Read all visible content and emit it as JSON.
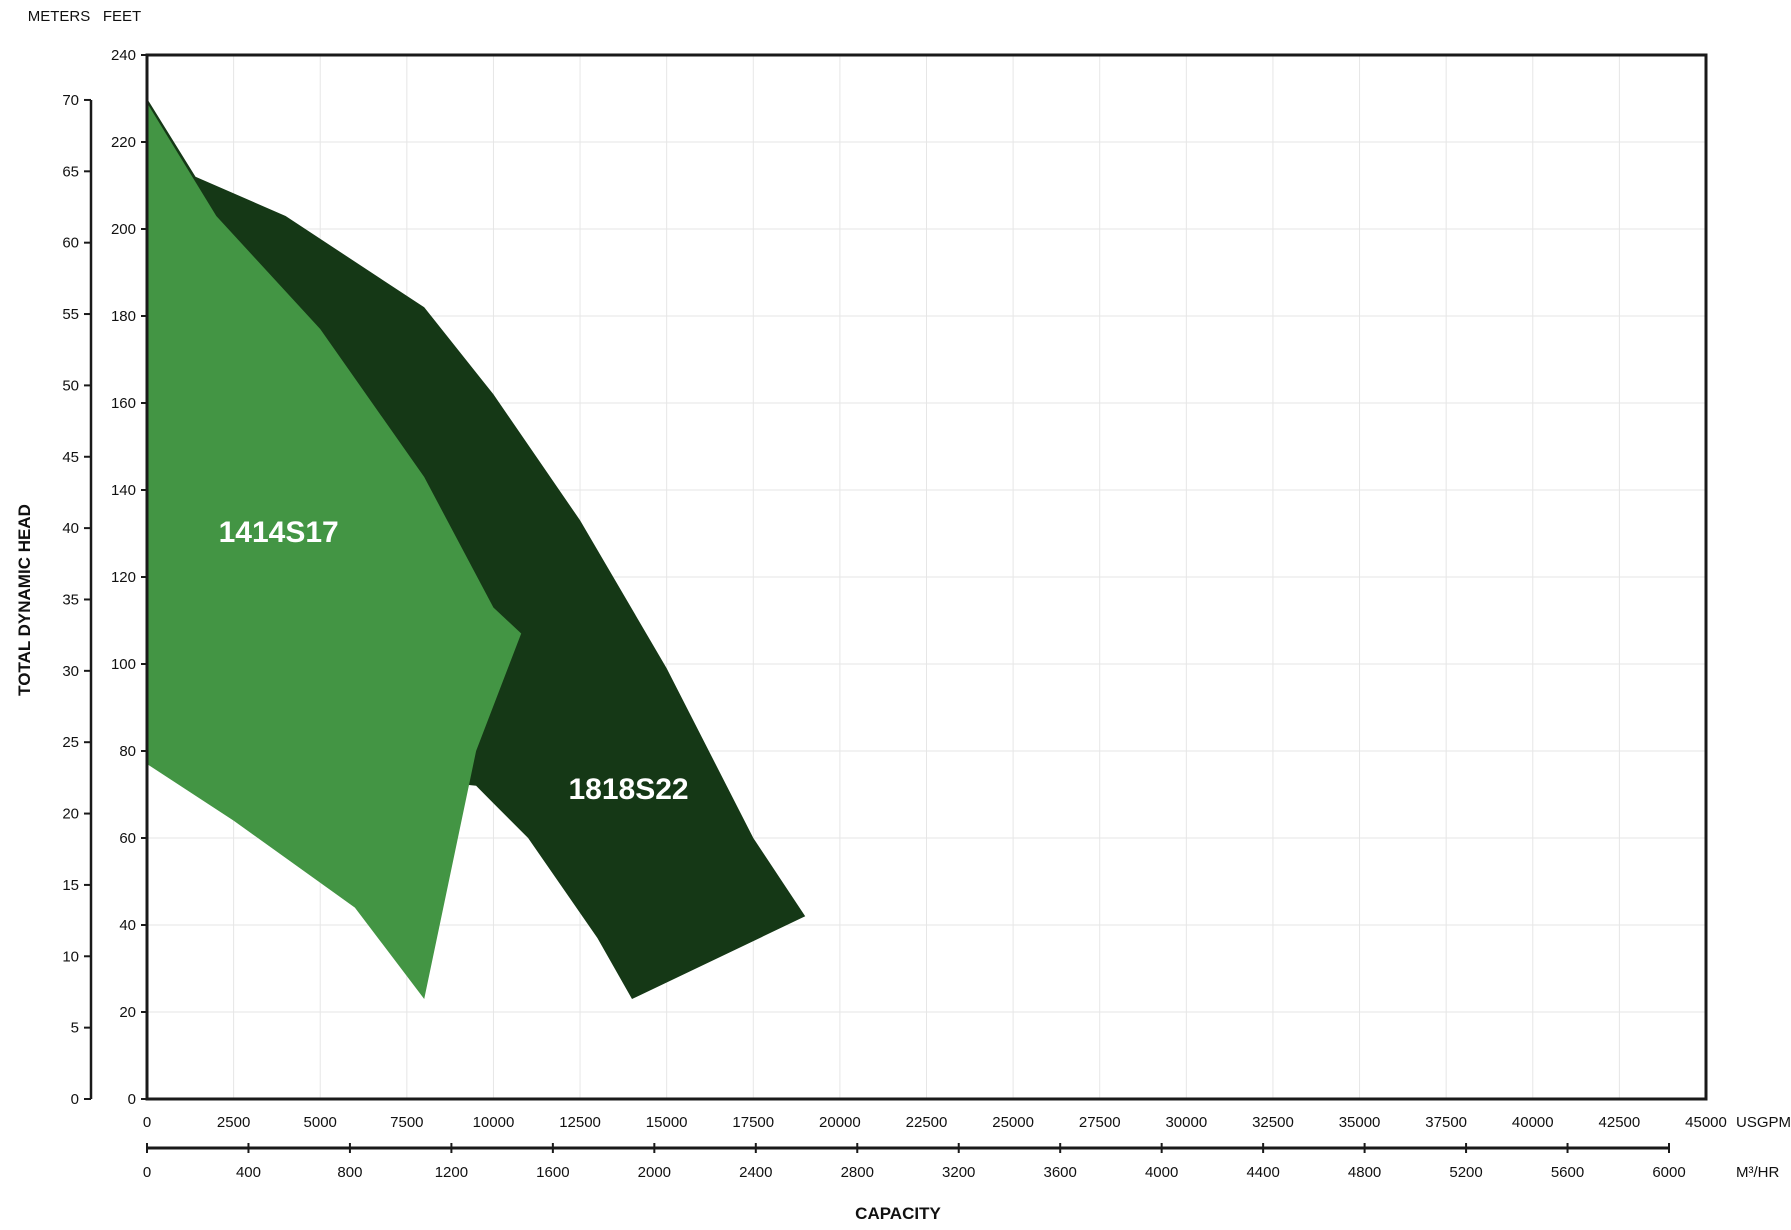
{
  "chart_data": {
    "type": "area",
    "xlabel": "CAPACITY",
    "ylabel": "TOTAL DYNAMIC HEAD",
    "x_axes": [
      {
        "unit": "USGPM",
        "range": [
          0,
          45000
        ],
        "ticks": [
          "0",
          "2500",
          "5000",
          "7500",
          "10000",
          "12500",
          "15000",
          "17500",
          "20000",
          "22500",
          "25000",
          "27500",
          "30000",
          "32500",
          "35000",
          "37500",
          "40000",
          "42500",
          "45000"
        ]
      },
      {
        "unit": "M³/HR",
        "range": [
          0,
          6000
        ],
        "ticks": [
          "0",
          "400",
          "800",
          "1200",
          "1600",
          "2000",
          "2400",
          "2800",
          "3200",
          "3600",
          "4000",
          "4400",
          "4800",
          "5200",
          "5600",
          "6000"
        ]
      }
    ],
    "y_axes": [
      {
        "unit": "FEET",
        "range": [
          0,
          240
        ],
        "ticks": [
          "0",
          "20",
          "40",
          "60",
          "80",
          "100",
          "120",
          "140",
          "160",
          "180",
          "200",
          "220",
          "240"
        ]
      },
      {
        "unit": "METERS",
        "range": [
          0,
          73.15
        ],
        "ticks": [
          "0",
          "5",
          "10",
          "15",
          "20",
          "25",
          "30",
          "35",
          "40",
          "45",
          "50",
          "55",
          "60",
          "65",
          "70"
        ]
      }
    ],
    "grid": true,
    "series": [
      {
        "name": "1818S22",
        "color": "#153816",
        "boundary_usgpm_feet": [
          [
            0,
            230
          ],
          [
            1400,
            212
          ],
          [
            4000,
            203
          ],
          [
            8000,
            182
          ],
          [
            10000,
            162
          ],
          [
            12500,
            133
          ],
          [
            15000,
            99
          ],
          [
            17500,
            60
          ],
          [
            19000,
            42
          ],
          [
            14000,
            23
          ],
          [
            13000,
            37
          ],
          [
            11000,
            60
          ],
          [
            10000,
            68
          ],
          [
            9500,
            72
          ],
          [
            0,
            80
          ]
        ]
      },
      {
        "name": "1414S17",
        "color": "#439544",
        "boundary_usgpm_feet": [
          [
            0,
            229
          ],
          [
            2000,
            203
          ],
          [
            5000,
            177
          ],
          [
            8000,
            143
          ],
          [
            10000,
            113
          ],
          [
            10800,
            107
          ],
          [
            9500,
            80
          ],
          [
            8000,
            23
          ],
          [
            6000,
            44
          ],
          [
            2500,
            64
          ],
          [
            0,
            77
          ]
        ]
      }
    ]
  }
}
